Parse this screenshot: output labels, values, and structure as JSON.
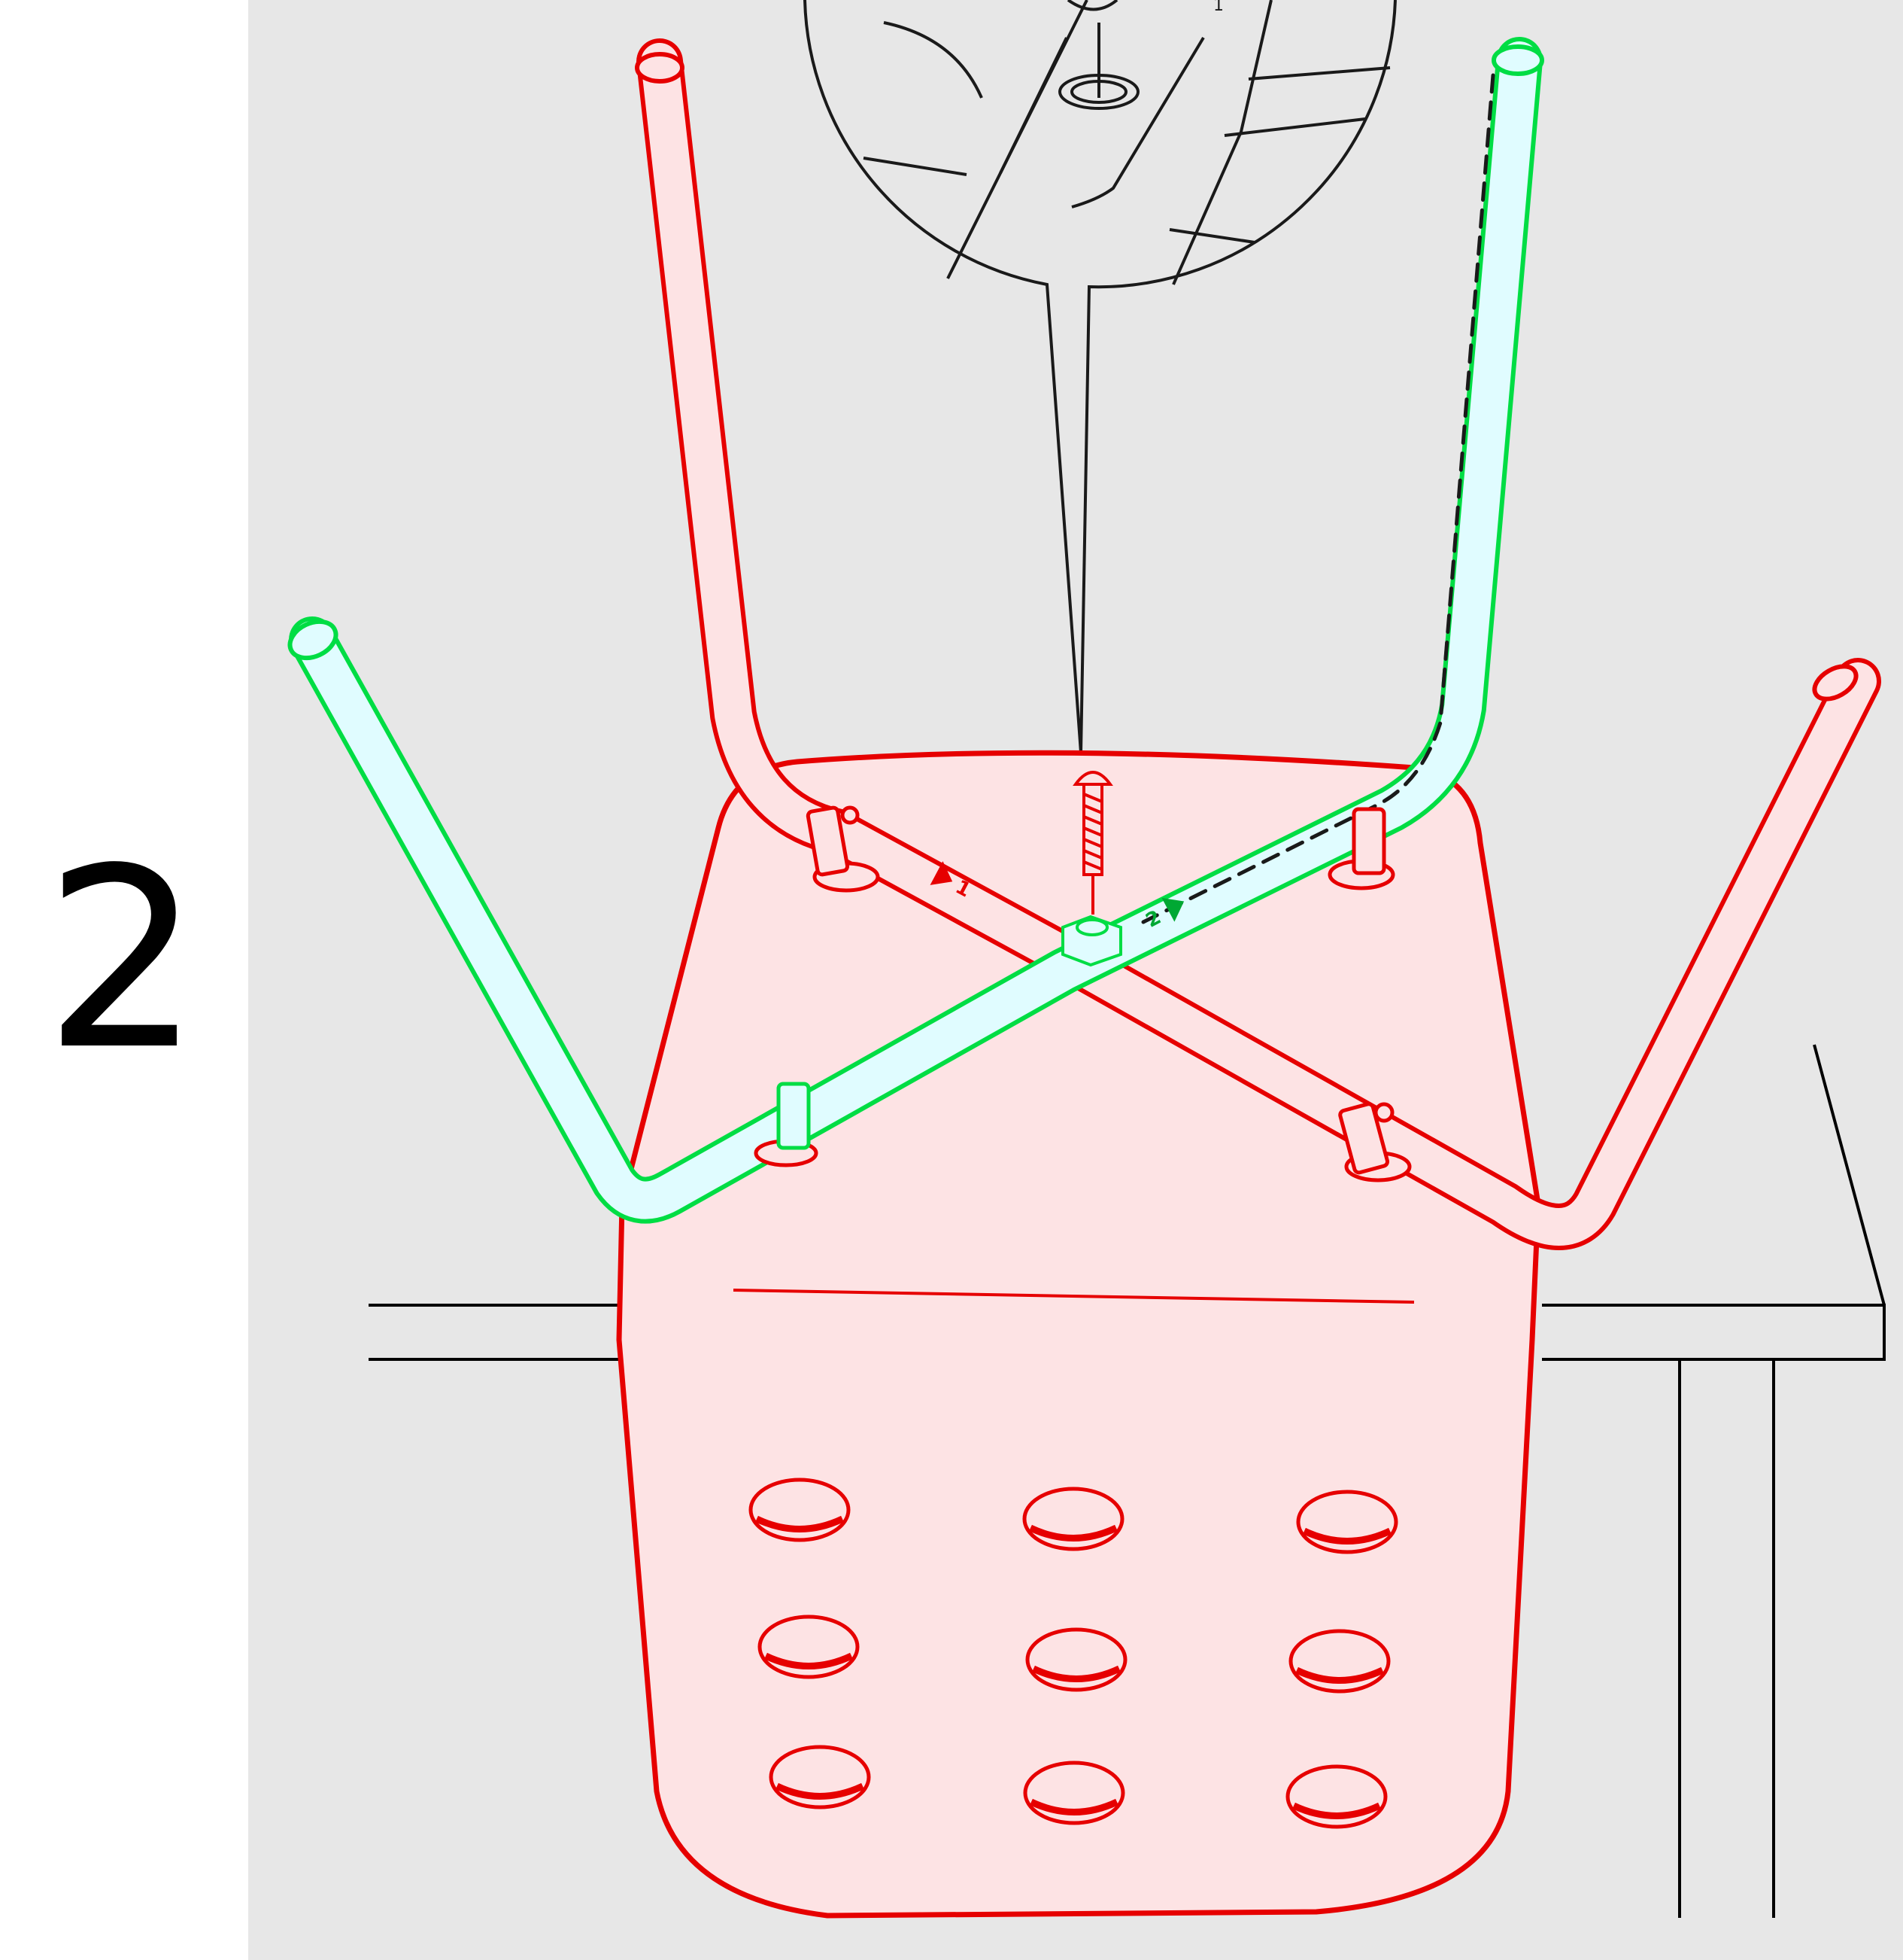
{
  "step": {
    "number": "2"
  },
  "detail": {
    "part_mark": "1"
  },
  "frames": [
    {
      "label": "1",
      "color": "#e60000"
    },
    {
      "label": "2",
      "color": "#00dd44"
    }
  ],
  "colors": {
    "background_panel": "#e7e7e7",
    "seat_fill": "#fde3e4",
    "seat_stroke": "#e60000",
    "frame2_fill": "#e0fcff",
    "frame2_stroke": "#00dd44",
    "lines": "#000000"
  },
  "icons": [
    "magnifier-detail-icon",
    "screw-icon",
    "nut-icon",
    "arrow-icon"
  ]
}
